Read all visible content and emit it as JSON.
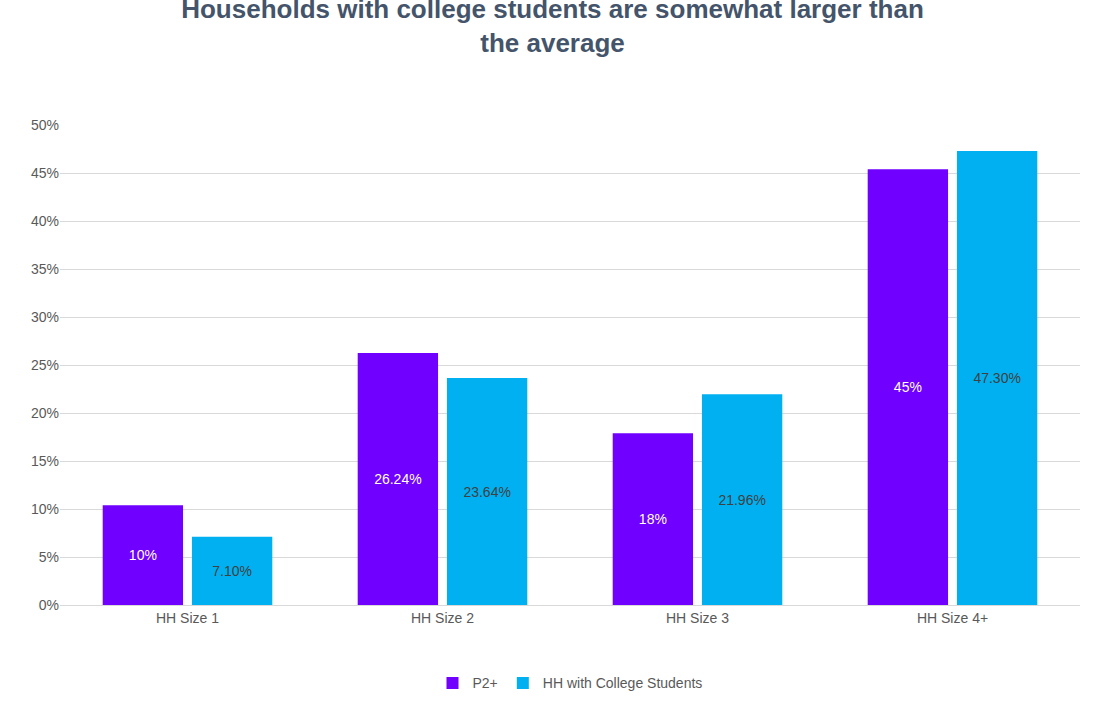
{
  "chart_data": {
    "type": "bar",
    "title": "Households with college students are somewhat larger than the average",
    "categories": [
      "HH Size 1",
      "HH Size 2",
      "HH Size 3",
      "HH Size 4+"
    ],
    "series": [
      {
        "name": "P2+",
        "color": "#7000ff",
        "values": [
          10.4,
          26.24,
          17.9,
          45.4
        ],
        "value_labels": [
          "10%",
          "26.24%",
          "18%",
          "45%"
        ]
      },
      {
        "name": "HH with College Students",
        "color": "#00b0f0",
        "values": [
          7.1,
          23.64,
          21.96,
          47.3
        ],
        "value_labels": [
          "7.10%",
          "23.64%",
          "21.96%",
          "47.30%"
        ]
      }
    ],
    "ylim": [
      0,
      50
    ],
    "yticks": [
      {
        "value": 0,
        "label": "0%"
      },
      {
        "value": 5,
        "label": "5%"
      },
      {
        "value": 10,
        "label": "10%"
      },
      {
        "value": 15,
        "label": "15%"
      },
      {
        "value": 20,
        "label": "20%"
      },
      {
        "value": 25,
        "label": "25%"
      },
      {
        "value": 30,
        "label": "30%"
      },
      {
        "value": 35,
        "label": "35%"
      },
      {
        "value": 40,
        "label": "40%"
      },
      {
        "value": 45,
        "label": "45%"
      },
      {
        "value": 50,
        "label": "50%"
      }
    ],
    "grid": true,
    "legend": "bottom",
    "data_labels": true
  }
}
